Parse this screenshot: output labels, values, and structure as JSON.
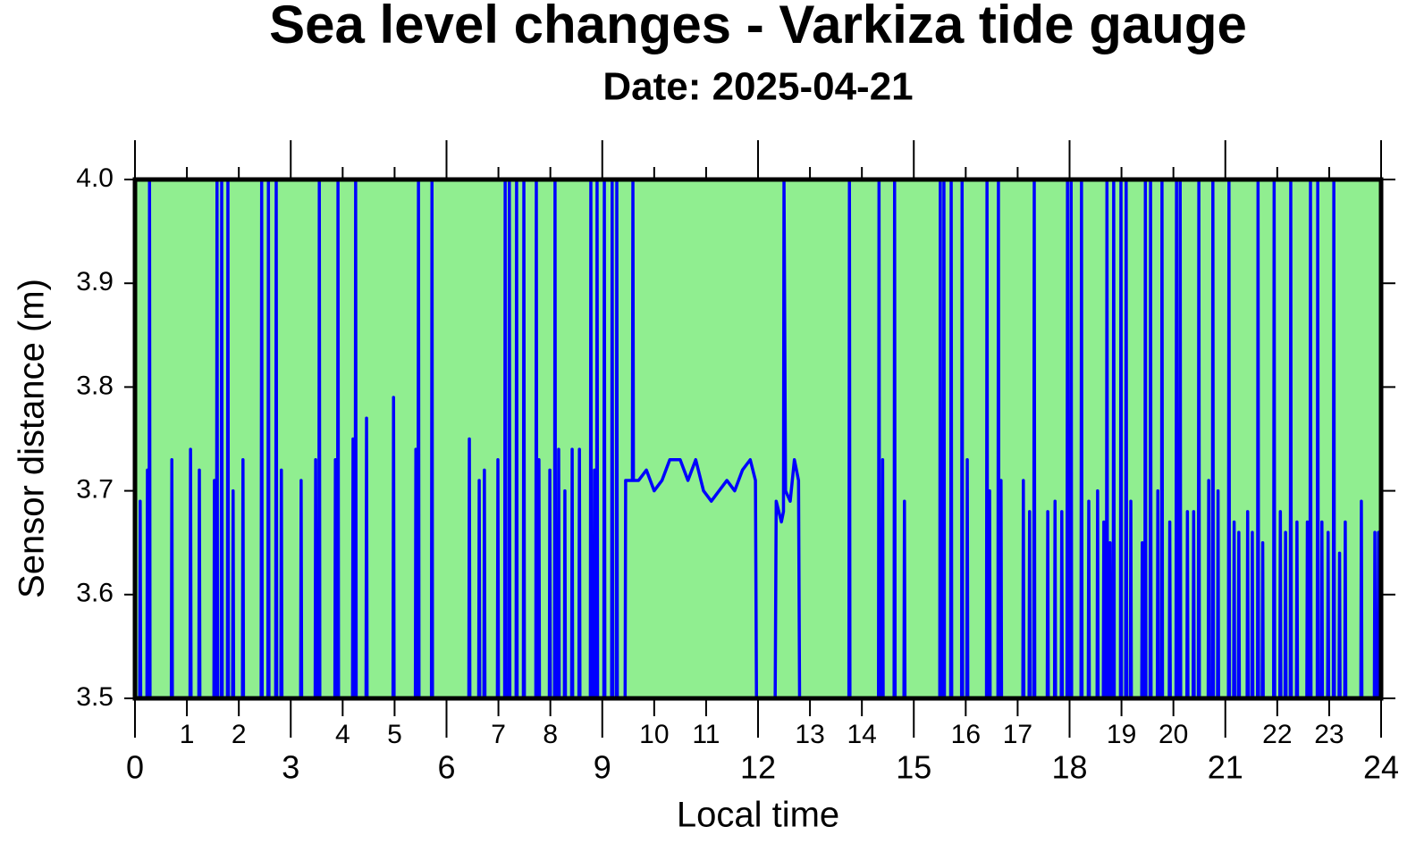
{
  "chart_data": {
    "type": "line",
    "title": "Sea level changes - Varkiza tide gauge",
    "subtitle": "Date: 2025-04-21",
    "x_label": "Local time",
    "y_label": "Sensor distance (m)",
    "background": "#90ee90",
    "xlim": [
      0,
      24
    ],
    "ylim": [
      3.5,
      4.0
    ],
    "xticks": [
      0,
      3,
      6,
      9,
      12,
      15,
      18,
      21,
      24
    ],
    "xticks_minor": [
      1,
      2,
      4,
      5,
      7,
      8,
      10,
      11,
      13,
      14,
      16,
      17,
      19,
      20,
      22,
      23
    ],
    "yticks": [
      3.5,
      3.6,
      3.7,
      3.8,
      3.9,
      {
        "value": 4,
        "label": "4.0"
      }
    ],
    "series": [
      {
        "name": "Sensor distance",
        "color": "#0000ff",
        "x": [
          0,
          0.09,
          0.1,
          0.11,
          0.23,
          0.24,
          0.25,
          0.27,
          0.28,
          0.29,
          0.7,
          0.71,
          0.72,
          1.06,
          1.07,
          1.08,
          1.23,
          1.24,
          1.25,
          1.52,
          1.53,
          1.54,
          1.57,
          1.58,
          1.59,
          1.66,
          1.67,
          1.68,
          1.78,
          1.79,
          1.8,
          1.88,
          1.89,
          1.9,
          2.07,
          2.08,
          2.09,
          2.43,
          2.44,
          2.45,
          2.56,
          2.57,
          2.58,
          2.71,
          2.72,
          2.73,
          2.81,
          2.82,
          2.83,
          3.19,
          3.2,
          3.21,
          3.47,
          3.48,
          3.49,
          3.54,
          3.55,
          3.56,
          3.85,
          3.86,
          3.87,
          3.9,
          3.91,
          3.92,
          4.19,
          4.2,
          4.21,
          4.24,
          4.25,
          4.26,
          4.45,
          4.46,
          4.47,
          4.97,
          4.98,
          4.99,
          5.4,
          5.41,
          5.42,
          5.45,
          5.46,
          5.47,
          5.71,
          5.72,
          5.73,
          6.43,
          6.44,
          6.45,
          6.62,
          6.63,
          6.64,
          6.72,
          6.73,
          6.74,
          6.98,
          6.99,
          7,
          7.12,
          7.13,
          7.14,
          7.2,
          7.21,
          7.22,
          7.34,
          7.35,
          7.36,
          7.48,
          7.49,
          7.5,
          7.72,
          7.73,
          7.74,
          7.77,
          7.78,
          7.79,
          7.98,
          7.99,
          8,
          8.08,
          8.09,
          8.1,
          8.15,
          8.16,
          8.17,
          8.27,
          8.28,
          8.29,
          8.41,
          8.42,
          8.43,
          8.55,
          8.56,
          8.57,
          8.77,
          8.78,
          8.79,
          8.84,
          8.85,
          8.86,
          8.89,
          8.9,
          8.91,
          9.03,
          9.04,
          9.05,
          9.18,
          9.19,
          9.2,
          9.27,
          9.28,
          9.29,
          9.44,
          9.45,
          9.58,
          9.59,
          9.6,
          9.7,
          9.85,
          10,
          10.15,
          10.3,
          10.5,
          10.65,
          10.8,
          10.95,
          11.1,
          11.25,
          11.4,
          11.55,
          11.7,
          11.85,
          11.95,
          11.97,
          12.33,
          12.35,
          12.45,
          12.49,
          12.5,
          12.53,
          12.62,
          12.7,
          12.78,
          12.8,
          13.75,
          13.76,
          13.77,
          14.32,
          14.33,
          14.34,
          14.39,
          14.4,
          14.41,
          14.62,
          14.63,
          14.64,
          14.81,
          14.82,
          14.83,
          15.5,
          15.51,
          15.52,
          15.57,
          15.58,
          15.59,
          15.71,
          15.72,
          15.73,
          15.92,
          15.93,
          15.94,
          16.02,
          16.03,
          16.04,
          16.4,
          16.41,
          16.42,
          16.45,
          16.46,
          16.47,
          16.62,
          16.63,
          16.64,
          16.67,
          16.68,
          16.69,
          17.1,
          17.11,
          17.12,
          17.22,
          17.23,
          17.24,
          17.31,
          17.32,
          17.33,
          17.57,
          17.58,
          17.59,
          17.71,
          17.72,
          17.73,
          17.84,
          17.85,
          17.86,
          17.95,
          17.96,
          17.97,
          18.02,
          18.03,
          18.04,
          18.22,
          18.23,
          18.24,
          18.36,
          18.37,
          18.38,
          18.53,
          18.54,
          18.55,
          18.65,
          18.66,
          18.67,
          18.71,
          18.72,
          18.73,
          18.77,
          18.78,
          18.79,
          18.84,
          18.85,
          18.86,
          18.98,
          18.99,
          19,
          19.08,
          19.09,
          19.1,
          19.17,
          19.18,
          19.19,
          19.39,
          19.4,
          19.41,
          19.45,
          19.46,
          19.47,
          19.55,
          19.56,
          19.57,
          19.69,
          19.7,
          19.71,
          19.77,
          19.78,
          19.79,
          19.92,
          19.93,
          19.94,
          20.05,
          20.06,
          20.07,
          20.12,
          20.13,
          20.14,
          20.26,
          20.27,
          20.28,
          20.38,
          20.39,
          20.4,
          20.48,
          20.49,
          20.5,
          20.67,
          20.68,
          20.69,
          20.75,
          20.76,
          20.77,
          20.85,
          20.86,
          20.87,
          21.06,
          21.07,
          21.08,
          21.16,
          21.17,
          21.18,
          21.25,
          21.26,
          21.27,
          21.42,
          21.43,
          21.44,
          21.51,
          21.52,
          21.53,
          21.62,
          21.63,
          21.64,
          21.71,
          21.72,
          21.73,
          21.93,
          21.94,
          21.95,
          22.05,
          22.06,
          22.07,
          22.15,
          22.16,
          22.17,
          22.25,
          22.26,
          22.27,
          22.37,
          22.38,
          22.39,
          22.57,
          22.58,
          22.59,
          22.63,
          22.64,
          22.65,
          22.77,
          22.78,
          22.79,
          22.85,
          22.86,
          22.87,
          22.97,
          22.98,
          22.99,
          23.08,
          23.09,
          23.1,
          23.19,
          23.2,
          23.21,
          23.3,
          23.31,
          23.32,
          23.61,
          23.62,
          23.63,
          23.87,
          23.88,
          23.89,
          23.94,
          23.95,
          23.96,
          24
        ],
        "values": [
          3.5,
          3.5,
          3.69,
          3.5,
          3.5,
          3.72,
          3.5,
          3.5,
          4,
          3.5,
          3.5,
          3.73,
          3.5,
          3.5,
          3.74,
          3.5,
          3.5,
          3.72,
          3.5,
          3.5,
          3.71,
          3.5,
          3.5,
          4,
          3.5,
          3.5,
          4,
          3.5,
          3.5,
          4,
          3.5,
          3.5,
          3.7,
          3.5,
          3.5,
          3.73,
          3.5,
          3.5,
          4,
          3.5,
          3.5,
          4,
          3.5,
          3.5,
          4,
          3.5,
          3.5,
          3.72,
          3.5,
          3.5,
          3.71,
          3.5,
          3.5,
          3.73,
          3.5,
          3.5,
          4,
          3.5,
          3.5,
          3.73,
          3.5,
          3.5,
          4,
          3.5,
          3.5,
          3.75,
          3.5,
          3.5,
          4,
          3.5,
          3.5,
          3.77,
          3.5,
          3.5,
          3.79,
          3.5,
          3.5,
          3.74,
          3.5,
          3.5,
          4,
          3.5,
          3.5,
          4,
          3.5,
          3.5,
          3.75,
          3.5,
          3.5,
          3.71,
          3.5,
          3.5,
          3.72,
          3.5,
          3.5,
          3.73,
          3.5,
          3.5,
          4,
          3.5,
          3.5,
          4,
          3.5,
          3.5,
          4,
          3.5,
          3.5,
          4,
          3.5,
          3.5,
          4,
          3.5,
          3.5,
          3.73,
          3.5,
          3.5,
          3.72,
          3.5,
          3.5,
          4,
          3.5,
          3.5,
          3.74,
          3.5,
          3.5,
          3.7,
          3.5,
          3.5,
          3.74,
          3.5,
          3.5,
          3.74,
          3.5,
          3.5,
          4,
          3.5,
          3.5,
          3.72,
          3.5,
          3.5,
          4,
          3.5,
          3.5,
          4,
          3.5,
          3.5,
          4,
          3.5,
          3.5,
          4,
          3.5,
          3.5,
          3.71,
          3.71,
          4,
          3.71,
          3.71,
          3.72,
          3.7,
          3.71,
          3.73,
          3.73,
          3.71,
          3.73,
          3.7,
          3.69,
          3.7,
          3.71,
          3.7,
          3.72,
          3.73,
          3.71,
          3.5,
          3.5,
          3.69,
          3.67,
          3.68,
          4,
          3.7,
          3.69,
          3.73,
          3.71,
          3.5,
          3.5,
          4,
          3.5,
          3.5,
          4,
          3.5,
          3.5,
          3.73,
          3.5,
          3.5,
          4,
          3.5,
          3.5,
          3.69,
          3.5,
          3.5,
          4,
          3.5,
          3.5,
          4,
          3.5,
          3.5,
          4,
          3.5,
          3.5,
          4,
          3.5,
          3.5,
          3.73,
          3.5,
          3.5,
          4,
          3.5,
          3.5,
          3.7,
          3.5,
          3.5,
          4,
          3.5,
          3.5,
          3.71,
          3.5,
          3.5,
          3.71,
          3.5,
          3.5,
          3.68,
          3.5,
          3.5,
          4,
          3.5,
          3.5,
          3.68,
          3.5,
          3.5,
          3.69,
          3.5,
          3.5,
          3.68,
          3.5,
          3.5,
          4,
          3.5,
          3.5,
          4,
          3.5,
          3.5,
          4,
          3.5,
          3.5,
          3.69,
          3.5,
          3.5,
          3.7,
          3.5,
          3.5,
          3.67,
          3.5,
          3.5,
          4,
          3.5,
          3.5,
          3.65,
          3.5,
          3.5,
          4,
          3.5,
          3.5,
          4,
          3.5,
          3.5,
          4,
          3.5,
          3.5,
          3.69,
          3.5,
          3.5,
          3.65,
          3.5,
          3.5,
          4,
          3.5,
          3.5,
          4,
          3.5,
          3.5,
          3.7,
          3.5,
          3.5,
          4,
          3.5,
          3.5,
          3.67,
          3.5,
          3.5,
          4,
          3.5,
          3.5,
          4,
          3.5,
          3.5,
          3.68,
          3.5,
          3.5,
          3.68,
          3.5,
          3.5,
          4,
          3.5,
          3.5,
          3.71,
          3.5,
          3.5,
          4,
          3.5,
          3.5,
          3.7,
          3.5,
          3.5,
          4,
          3.5,
          3.5,
          3.67,
          3.5,
          3.5,
          3.66,
          3.5,
          3.5,
          3.68,
          3.5,
          3.5,
          3.66,
          3.5,
          3.5,
          4,
          3.5,
          3.5,
          3.65,
          3.5,
          3.5,
          4,
          3.5,
          3.5,
          3.68,
          3.5,
          3.5,
          3.66,
          3.5,
          3.5,
          4,
          3.5,
          3.5,
          3.67,
          3.5,
          3.5,
          3.67,
          3.5,
          3.5,
          4,
          3.5,
          3.5,
          4,
          3.5,
          3.5,
          3.67,
          3.5,
          3.5,
          3.66,
          3.5,
          3.5,
          4,
          3.5,
          3.5,
          3.64,
          3.5,
          3.5,
          3.67,
          3.5,
          3.5,
          3.69,
          3.5,
          3.5,
          3.66,
          3.5,
          3.5,
          3.66,
          3.5,
          3.5
        ]
      }
    ]
  }
}
